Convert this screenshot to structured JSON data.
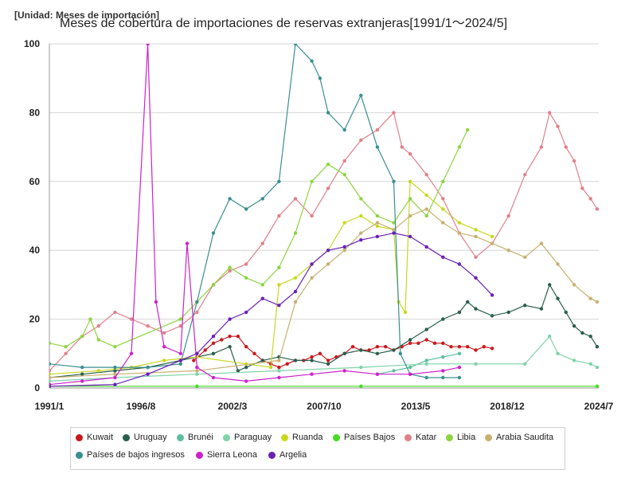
{
  "unit_label": "[Unidad: Meses de importación]",
  "chart_data": {
    "type": "line",
    "title": "Meses de cobertura de importaciones de reservas extranjeras[1991/1～2024/5]",
    "x_range": [
      "1991/1",
      "2024/7"
    ],
    "y_range": [
      0,
      100
    ],
    "y_ticks": [
      0,
      20,
      40,
      60,
      80,
      100
    ],
    "x_ticks": [
      "1991/1",
      "1996/8",
      "2002/3",
      "2007/10",
      "2013/5",
      "2018/12",
      "2024/7"
    ],
    "grid": "horizontal",
    "legend_position": "bottom",
    "series": [
      {
        "name": "Kuwait",
        "color": "#c8191e",
        "points": [
          [
            1999.8,
            8
          ],
          [
            2000.5,
            11
          ],
          [
            2001,
            13
          ],
          [
            2001.5,
            14
          ],
          [
            2002,
            15
          ],
          [
            2002.5,
            15
          ],
          [
            2003,
            12
          ],
          [
            2003.5,
            10
          ],
          [
            2004,
            8
          ],
          [
            2004.5,
            7
          ],
          [
            2005,
            6
          ],
          [
            2005.5,
            7
          ],
          [
            2006,
            8
          ],
          [
            2006.5,
            8
          ],
          [
            2007,
            9
          ],
          [
            2007.5,
            10
          ],
          [
            2008,
            8
          ],
          [
            2008.5,
            9
          ],
          [
            2009,
            10
          ],
          [
            2009.5,
            12
          ],
          [
            2010,
            11
          ],
          [
            2010.5,
            11
          ],
          [
            2011,
            12
          ],
          [
            2011.5,
            12
          ],
          [
            2012,
            11
          ],
          [
            2012.5,
            12
          ],
          [
            2013,
            13
          ],
          [
            2013.5,
            13
          ],
          [
            2014,
            14
          ],
          [
            2014.5,
            13
          ],
          [
            2015,
            13
          ],
          [
            2015.5,
            12
          ],
          [
            2016,
            12
          ],
          [
            2016.5,
            12
          ],
          [
            2017,
            11
          ],
          [
            2017.5,
            12
          ],
          [
            2018,
            11.5
          ]
        ]
      },
      {
        "name": "Uruguay",
        "color": "#2a5e4d",
        "points": [
          [
            1991,
            3
          ],
          [
            1993,
            4
          ],
          [
            1995,
            5
          ],
          [
            1997,
            6
          ],
          [
            1999,
            8
          ],
          [
            2001,
            10
          ],
          [
            2002,
            12
          ],
          [
            2002.5,
            5
          ],
          [
            2003,
            6
          ],
          [
            2004,
            8
          ],
          [
            2005,
            9
          ],
          [
            2006,
            8
          ],
          [
            2007,
            8
          ],
          [
            2008,
            7
          ],
          [
            2009,
            10
          ],
          [
            2010,
            11
          ],
          [
            2011,
            10
          ],
          [
            2012,
            11
          ],
          [
            2013,
            14
          ],
          [
            2014,
            17
          ],
          [
            2015,
            20
          ],
          [
            2016,
            22
          ],
          [
            2016.5,
            25
          ],
          [
            2017,
            23
          ],
          [
            2018,
            21
          ],
          [
            2019,
            22
          ],
          [
            2020,
            24
          ],
          [
            2021,
            23
          ],
          [
            2021.5,
            30
          ],
          [
            2022,
            26
          ],
          [
            2022.5,
            22
          ],
          [
            2023,
            18
          ],
          [
            2023.5,
            16
          ],
          [
            2024,
            15
          ],
          [
            2024.4,
            12
          ]
        ]
      },
      {
        "name": "Brunéi",
        "color": "#5cbf9c",
        "points": [
          [
            2011,
            4
          ],
          [
            2012,
            5
          ],
          [
            2013,
            6
          ],
          [
            2014,
            8
          ],
          [
            2015,
            9
          ],
          [
            2016,
            10
          ]
        ]
      },
      {
        "name": "Paraguay",
        "color": "#7fd3a8",
        "points": [
          [
            1991,
            2
          ],
          [
            1995,
            3
          ],
          [
            2000,
            4
          ],
          [
            2005,
            5
          ],
          [
            2010,
            6
          ],
          [
            2014,
            7
          ],
          [
            2017,
            7
          ],
          [
            2020,
            7
          ],
          [
            2021.5,
            15
          ],
          [
            2022,
            10
          ],
          [
            2023,
            8
          ],
          [
            2024,
            7
          ],
          [
            2024.4,
            6
          ]
        ]
      },
      {
        "name": "Ruanda",
        "color": "#c8d820",
        "points": [
          [
            1991,
            4
          ],
          [
            1994,
            5
          ],
          [
            1996,
            6
          ],
          [
            1998,
            8
          ],
          [
            2000,
            9
          ],
          [
            2003,
            7
          ],
          [
            2004.5,
            6
          ],
          [
            2005,
            30
          ],
          [
            2006,
            32
          ],
          [
            2007,
            36
          ],
          [
            2008,
            40
          ],
          [
            2009,
            48
          ],
          [
            2010,
            50
          ],
          [
            2011,
            47
          ],
          [
            2012,
            46
          ],
          [
            2012.3,
            25
          ],
          [
            2012.7,
            22
          ],
          [
            2013,
            60
          ],
          [
            2014,
            56
          ],
          [
            2015,
            52
          ],
          [
            2016,
            48
          ],
          [
            2017,
            46
          ],
          [
            2018,
            44
          ]
        ]
      },
      {
        "name": "Países Bajos",
        "color": "#44dd22",
        "points": [
          [
            1991,
            0.5
          ],
          [
            2000,
            0.5
          ],
          [
            2010,
            0.5
          ],
          [
            2024.4,
            0.5
          ]
        ]
      },
      {
        "name": "Katar",
        "color": "#e0808a",
        "points": [
          [
            1991,
            5
          ],
          [
            1992,
            10
          ],
          [
            1993,
            15
          ],
          [
            1994,
            18
          ],
          [
            1995,
            22
          ],
          [
            1996,
            20
          ],
          [
            1997,
            18
          ],
          [
            1998,
            16
          ],
          [
            1999,
            18
          ],
          [
            2000,
            22
          ],
          [
            2001,
            30
          ],
          [
            2002,
            34
          ],
          [
            2003,
            36
          ],
          [
            2004,
            42
          ],
          [
            2005,
            50
          ],
          [
            2006,
            55
          ],
          [
            2007,
            50
          ],
          [
            2008,
            58
          ],
          [
            2009,
            66
          ],
          [
            2010,
            72
          ],
          [
            2011,
            75
          ],
          [
            2012,
            80
          ],
          [
            2012.5,
            70
          ],
          [
            2013,
            68
          ],
          [
            2014,
            62
          ],
          [
            2015,
            55
          ],
          [
            2016,
            45
          ],
          [
            2017,
            38
          ],
          [
            2018,
            42
          ],
          [
            2019,
            50
          ],
          [
            2020,
            62
          ],
          [
            2021,
            70
          ],
          [
            2021.5,
            80
          ],
          [
            2022,
            76
          ],
          [
            2022.5,
            70
          ],
          [
            2023,
            66
          ],
          [
            2023.5,
            58
          ],
          [
            2024,
            55
          ],
          [
            2024.4,
            52
          ]
        ]
      },
      {
        "name": "Libia",
        "color": "#8ed440",
        "points": [
          [
            1991,
            13
          ],
          [
            1992,
            12
          ],
          [
            1993,
            15
          ],
          [
            1993.5,
            20
          ],
          [
            1994,
            14
          ],
          [
            1995,
            12
          ],
          [
            1999,
            20
          ],
          [
            2000,
            25
          ],
          [
            2001,
            30
          ],
          [
            2002,
            35
          ],
          [
            2003,
            32
          ],
          [
            2004,
            30
          ],
          [
            2005,
            35
          ],
          [
            2006,
            45
          ],
          [
            2007,
            60
          ],
          [
            2008,
            65
          ],
          [
            2009,
            62
          ],
          [
            2010,
            55
          ],
          [
            2011,
            50
          ],
          [
            2012,
            48
          ],
          [
            2013,
            55
          ],
          [
            2014,
            50
          ],
          [
            2015,
            60
          ],
          [
            2016,
            70
          ],
          [
            2016.5,
            75
          ]
        ]
      },
      {
        "name": "Arabia Saudita",
        "color": "#c8b070",
        "points": [
          [
            1991,
            3
          ],
          [
            1995,
            4
          ],
          [
            2000,
            5
          ],
          [
            2005,
            8
          ],
          [
            2006,
            25
          ],
          [
            2007,
            32
          ],
          [
            2008,
            36
          ],
          [
            2009,
            40
          ],
          [
            2010,
            45
          ],
          [
            2011,
            48
          ],
          [
            2012,
            46
          ],
          [
            2013,
            50
          ],
          [
            2014,
            52
          ],
          [
            2015,
            48
          ],
          [
            2016,
            45
          ],
          [
            2017,
            44
          ],
          [
            2018,
            42
          ],
          [
            2019,
            40
          ],
          [
            2020,
            38
          ],
          [
            2021,
            42
          ],
          [
            2022,
            36
          ],
          [
            2023,
            30
          ],
          [
            2024,
            26
          ],
          [
            2024.4,
            25
          ]
        ]
      },
      {
        "name": "Países de bajos ingresos",
        "color": "#3a8f8f",
        "points": [
          [
            1991,
            7
          ],
          [
            1993,
            6
          ],
          [
            1995,
            6
          ],
          [
            1997,
            6
          ],
          [
            1999,
            7
          ],
          [
            2000,
            25
          ],
          [
            2001,
            45
          ],
          [
            2002,
            55
          ],
          [
            2003,
            52
          ],
          [
            2004,
            55
          ],
          [
            2005,
            60
          ],
          [
            2006,
            100
          ],
          [
            2007,
            95
          ],
          [
            2007.5,
            90
          ],
          [
            2008,
            80
          ],
          [
            2009,
            75
          ],
          [
            2010,
            85
          ],
          [
            2011,
            70
          ],
          [
            2012,
            60
          ],
          [
            2012.4,
            10
          ],
          [
            2013,
            4
          ],
          [
            2014,
            3
          ],
          [
            2015,
            3
          ],
          [
            2016,
            3
          ]
        ]
      },
      {
        "name": "Sierra Leona",
        "color": "#cc22cc",
        "points": [
          [
            1991,
            1
          ],
          [
            1993,
            2
          ],
          [
            1995,
            3
          ],
          [
            1996,
            10
          ],
          [
            1997,
            100
          ],
          [
            1997.5,
            25
          ],
          [
            1998,
            12
          ],
          [
            1999,
            10
          ],
          [
            1999.4,
            42
          ],
          [
            2000,
            6
          ],
          [
            2001,
            3
          ],
          [
            2003,
            2
          ],
          [
            2005,
            3
          ],
          [
            2007,
            4
          ],
          [
            2009,
            5
          ],
          [
            2011,
            4
          ],
          [
            2013,
            4
          ],
          [
            2015,
            5
          ],
          [
            2016,
            6
          ]
        ]
      },
      {
        "name": "Argelia",
        "color": "#6a1fb8",
        "points": [
          [
            1991,
            0.5
          ],
          [
            1995,
            1
          ],
          [
            1997,
            4
          ],
          [
            1999,
            8
          ],
          [
            2000,
            10
          ],
          [
            2001,
            15
          ],
          [
            2002,
            20
          ],
          [
            2003,
            22
          ],
          [
            2004,
            26
          ],
          [
            2005,
            24
          ],
          [
            2006,
            28
          ],
          [
            2007,
            36
          ],
          [
            2008,
            40
          ],
          [
            2009,
            41
          ],
          [
            2010,
            43
          ],
          [
            2011,
            44
          ],
          [
            2012,
            45
          ],
          [
            2013,
            44
          ],
          [
            2014,
            41
          ],
          [
            2015,
            38
          ],
          [
            2016,
            36
          ],
          [
            2017,
            32
          ],
          [
            2018,
            27
          ]
        ]
      }
    ]
  }
}
